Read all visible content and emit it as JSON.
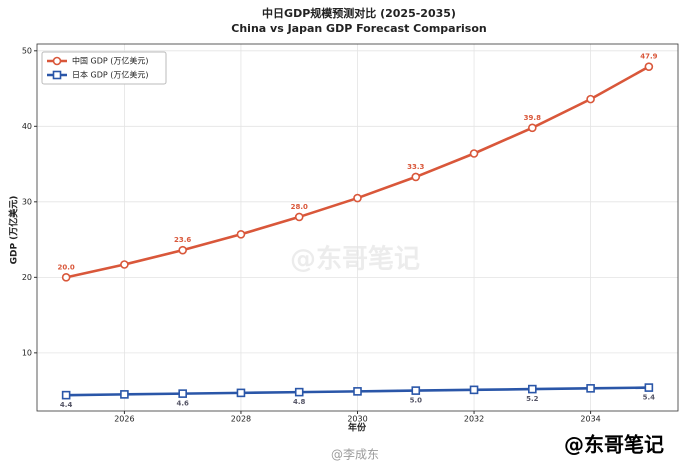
{
  "chart_data": {
    "type": "line",
    "title": "中日GDP规模预测对比 (2025-2035)",
    "subtitle": "China vs Japan GDP Forecast Comparison",
    "x_label": "年份",
    "y_label": "GDP (万亿美元)",
    "x": [
      2025,
      2026,
      2027,
      2028,
      2029,
      2030,
      2031,
      2032,
      2033,
      2034,
      2035
    ],
    "series": [
      {
        "name": "中国 GDP (万亿美元)",
        "color": "#d9573a",
        "marker": "circle",
        "values": [
          20.0,
          21.7,
          23.6,
          25.7,
          28.0,
          30.5,
          33.3,
          36.4,
          39.8,
          43.6,
          47.9
        ],
        "value_labels": [
          "20.0",
          null,
          "23.6",
          null,
          "28.0",
          null,
          "33.3",
          null,
          "39.8",
          null,
          "47.9"
        ]
      },
      {
        "name": "日本 GDP (万亿美元)",
        "color": "#2a56a8",
        "marker": "square",
        "values": [
          4.4,
          4.5,
          4.6,
          4.7,
          4.8,
          4.9,
          5.0,
          5.1,
          5.2,
          5.3,
          5.4
        ],
        "value_labels": [
          "4.4",
          null,
          "4.6",
          null,
          "4.8",
          null,
          "5.0",
          null,
          "5.2",
          null,
          "5.4"
        ]
      }
    ],
    "xlim": [
      2024.5,
      2035.5
    ],
    "xticks": [
      2026,
      2028,
      2030,
      2032,
      2034
    ],
    "ylim": [
      2.3,
      50.9
    ],
    "yticks": [
      10,
      20,
      30,
      40,
      50
    ],
    "grid": true,
    "legend": "upper left",
    "watermark": "@东哥笔记",
    "credit": "@李成东"
  }
}
